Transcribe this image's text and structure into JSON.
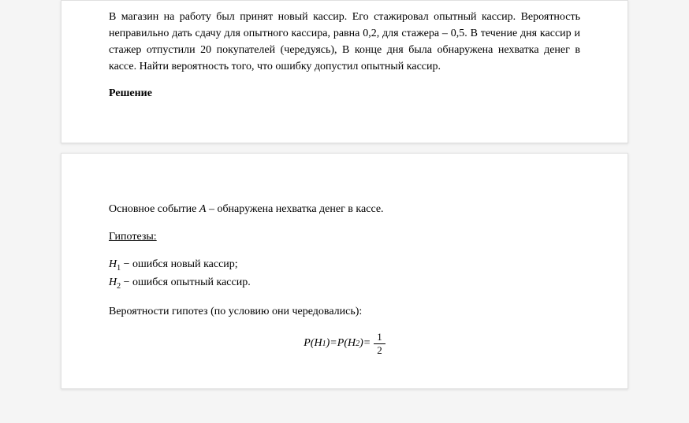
{
  "problem": {
    "text": "В магазин на работу был принят новый кассир. Его стажировал опытный кассир. Вероятность неправильно дать сдачу для опытного кассира, равна 0,2, для стажера – 0,5. В течение дня кассир и стажер отпустили 20 покупателей (чередуясь), В конце дня была обнаружена нехватка денег в кассе. Найти вероятность того, что ошибку допустил опытный кассир.",
    "text_color": "#000000",
    "font_size": 14
  },
  "solution_heading": "Решение",
  "main_event": {
    "prefix": "Основное событие ",
    "symbol": "A",
    "suffix": " – обнаружена нехватка денег в кассе."
  },
  "hypotheses_heading": "Гипотезы:",
  "hypotheses": [
    {
      "symbol": "H",
      "sub": "1",
      "text": " − ошибся новый кассир;"
    },
    {
      "symbol": "H",
      "sub": "2",
      "text": " − ошибся опытный кассир."
    }
  ],
  "probability_text": "Вероятности гипотез (по условию они чередовались):",
  "formula": {
    "lhs1_symbol": "P",
    "lhs1_arg_symbol": "H",
    "lhs1_arg_sub": "1",
    "eq1": " = ",
    "lhs2_symbol": "P",
    "lhs2_arg_symbol": "H",
    "lhs2_arg_sub": "2",
    "eq2": " = ",
    "fraction_num": "1",
    "fraction_den": "2"
  },
  "styling": {
    "background_color": "#f5f5f5",
    "page_background": "#ffffff",
    "text_color": "#000000",
    "border_color": "#e0e0e0",
    "font_family": "Times New Roman"
  }
}
